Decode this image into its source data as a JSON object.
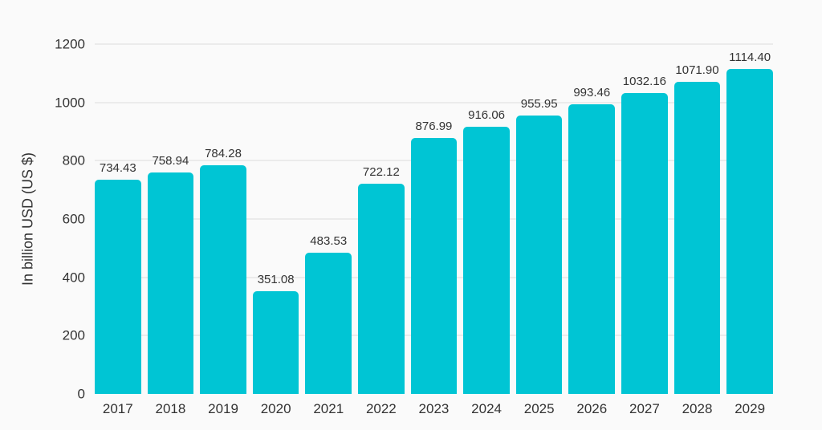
{
  "page": {
    "background_color": "#fafafa",
    "text_color": "#333333"
  },
  "chart_data": {
    "type": "bar",
    "title": "",
    "xlabel": "",
    "ylabel": "In billion USD (US $)",
    "categories": [
      "2017",
      "2018",
      "2019",
      "2020",
      "2021",
      "2022",
      "2023",
      "2024",
      "2025",
      "2026",
      "2027",
      "2028",
      "2029"
    ],
    "values": [
      734.43,
      758.94,
      784.28,
      351.08,
      483.53,
      722.12,
      876.99,
      916.06,
      955.95,
      993.46,
      1032.16,
      1071.9,
      1114.4
    ],
    "value_labels": [
      "734.43",
      "758.94",
      "784.28",
      "351.08",
      "483.53",
      "722.12",
      "876.99",
      "916.06",
      "955.95",
      "993.46",
      "1032.16",
      "1071.90",
      "1114.40"
    ],
    "ylim": [
      0,
      1200
    ],
    "yticks": [
      0,
      200,
      400,
      600,
      800,
      1000,
      1200
    ],
    "grid": true,
    "legend_position": "none",
    "bar_color": "#00c5d4",
    "gridline_color": "#dcdcdc",
    "label_color": "#333333"
  }
}
